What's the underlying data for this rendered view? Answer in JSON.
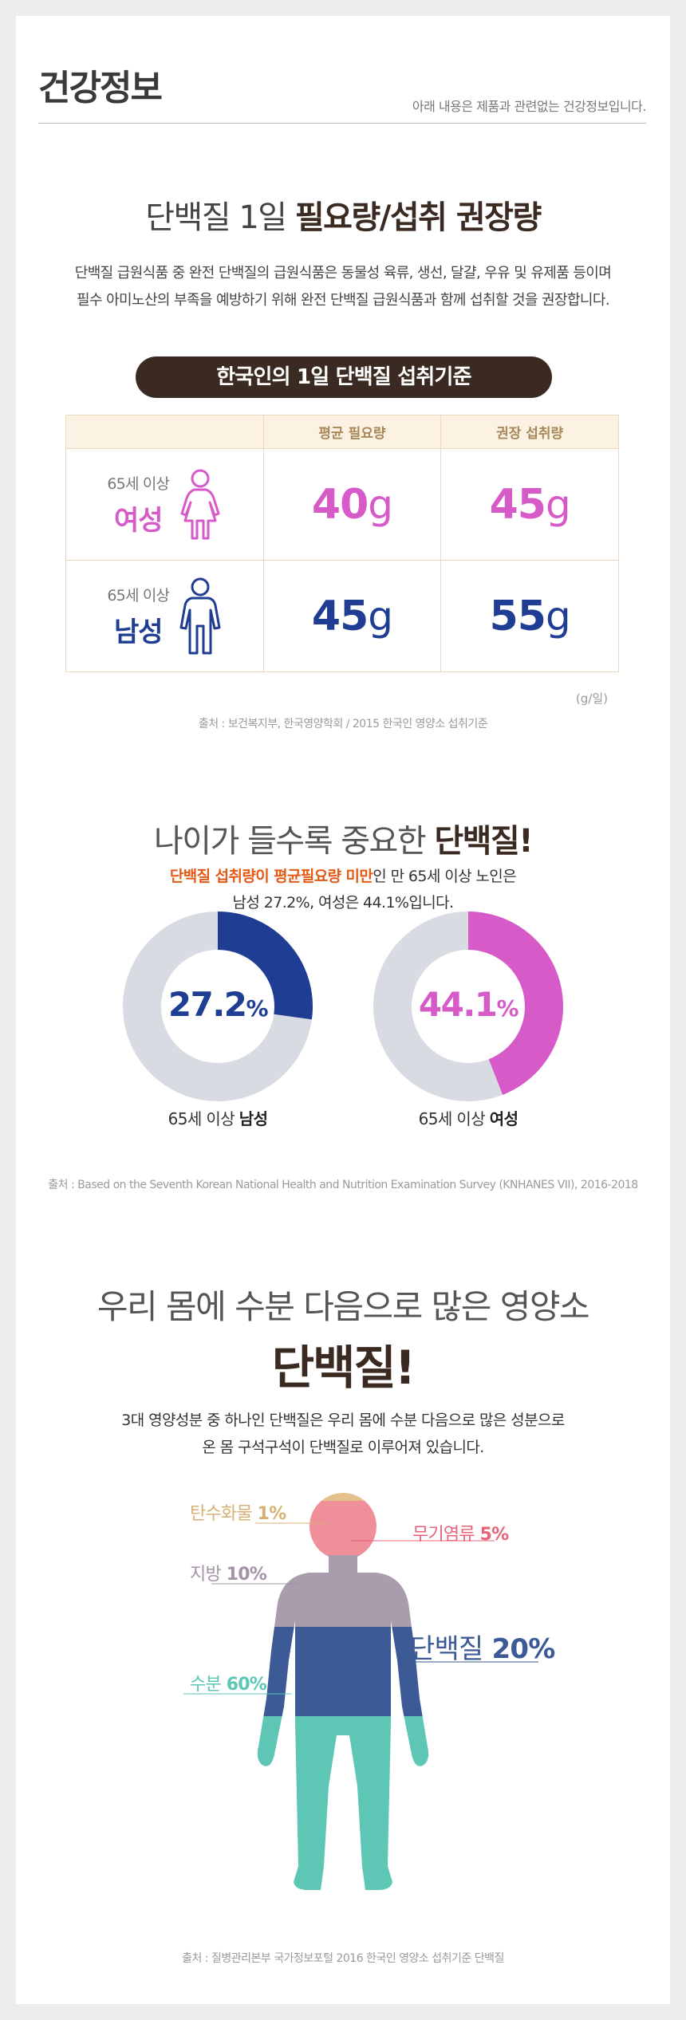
{
  "header": {
    "title": "건강정보",
    "note": "아래 내용은 제품과 관련없는 건강정보입니다."
  },
  "section1": {
    "title_light": "단백질 1일 ",
    "title_bold": "필요량/섭취 권장량",
    "desc_line1": "단백질 급원식품 중 완전 단백질의 급원식품은 동물성 육류, 생선, 달걀, 우유 및 유제품 등이며",
    "desc_line2": "필수 아미노산의 부족을 예방하기 위해 완전 단백질 급원식품과 함께 섭취할 것을 권장합니다.",
    "pill": "한국인의 1일 단백질 섭취기준",
    "table": {
      "headers": [
        "",
        "평균 필요량",
        "권장 섭취량"
      ],
      "rows": [
        {
          "age": "65세 이상",
          "sex": "여성",
          "avg": "40",
          "rec": "45",
          "unit": "g",
          "icon": "female-person-icon",
          "color": "#d65bc8"
        },
        {
          "age": "65세 이상",
          "sex": "남성",
          "avg": "45",
          "rec": "55",
          "unit": "g",
          "icon": "male-person-icon",
          "color": "#1f3e93"
        }
      ]
    },
    "unit_note": "(g/일)",
    "source": "출처 : 보건복지부, 한국영양학회 / 2015 한국인 영양소 섭취기준"
  },
  "section2": {
    "title_light": "나이가 들수록 중요한 ",
    "title_bold": "단백질!",
    "desc_highlight": "단백질 섭취량이 평균필요량 미만",
    "desc_rest": "인 만 65세 이상 노인은",
    "desc_line2": "남성 27.2%, 여성은 44.1%입니다.",
    "donuts": [
      {
        "value": "27.2",
        "unit": "%",
        "fraction": 0.272,
        "caption_prefix": "65세 이상 ",
        "caption_bold": "남성",
        "color": "#1f3e93"
      },
      {
        "value": "44.1",
        "unit": "%",
        "fraction": 0.441,
        "caption_prefix": "65세 이상 ",
        "caption_bold": "여성",
        "color": "#d65bc8"
      }
    ],
    "track_color": "#d9dbe3",
    "source": "출처 : Based on the Seventh Korean National Health and Nutrition Examination Survey (KNHANES VII), 2016-2018"
  },
  "section3": {
    "title": "우리 몸에 수분 다음으로 많은 영양소",
    "big": "단백질!",
    "desc_line1": "3대 영양성분 중 하나인 단백질은 우리 몸에 수분 다음으로 많은 성분으로",
    "desc_line2": "온 몸 구석구석이 단백질로 이루어져 있습니다.",
    "components": [
      {
        "name": "탄수화물",
        "value": "1%",
        "color": "#d9b074"
      },
      {
        "name": "무기염류",
        "value": "5%",
        "color": "#e8637a"
      },
      {
        "name": "지방",
        "value": "10%",
        "color": "#a393a6"
      },
      {
        "name": "단백질",
        "value": "20%",
        "color": "#3c5a96"
      },
      {
        "name": "수분",
        "value": "60%",
        "color": "#5ec6b4"
      }
    ],
    "source": "출처 : 질병관리본부 국가정보포털 2016 한국인 영양소 섭취기준 단백질"
  }
}
